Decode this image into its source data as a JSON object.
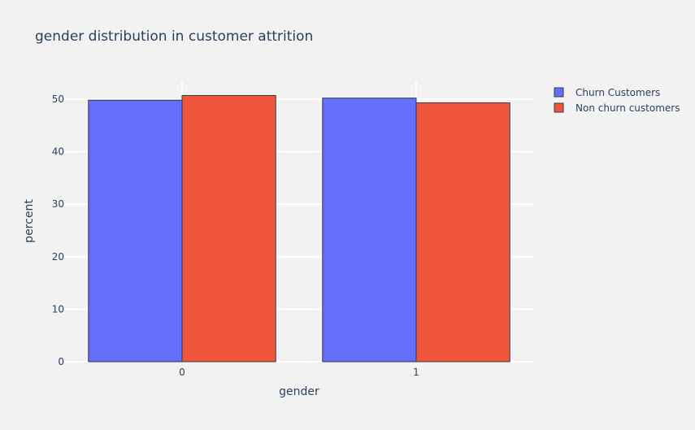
{
  "chart_data": {
    "type": "bar",
    "title": "gender distribution in customer attrition",
    "xlabel": "gender",
    "ylabel": "percent",
    "categories": [
      "0",
      "1"
    ],
    "series": [
      {
        "name": "Churn Customers",
        "values": [
          49.8,
          50.2
        ],
        "color": "#636efa"
      },
      {
        "name": "Non churn customers",
        "values": [
          50.7,
          49.3
        ],
        "color": "#ef553b"
      }
    ],
    "yticks": [
      0,
      10,
      20,
      30,
      40,
      50
    ],
    "ylim": [
      0,
      53.4
    ],
    "grid": true,
    "legend_position": "top-right"
  },
  "colors": {
    "background": "#f2f2f2",
    "grid": "#ffffff",
    "text": "#2a3f5f",
    "bar_outline": "#3a3a3a"
  }
}
